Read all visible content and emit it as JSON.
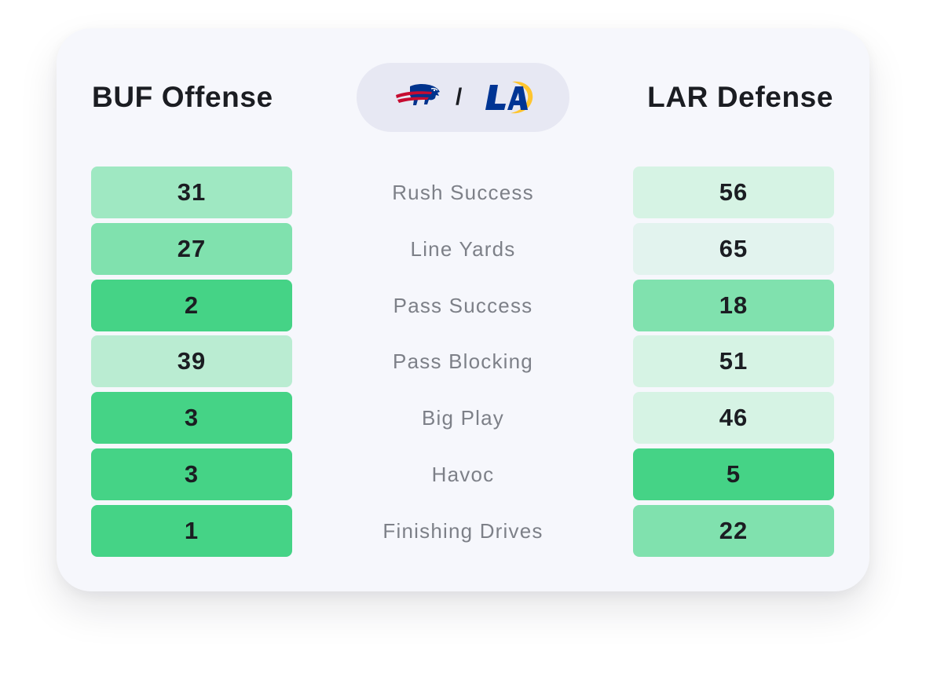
{
  "header": {
    "offense_title": "BUF Offense",
    "defense_title": "LAR Defense",
    "separator": "/",
    "offense_logo": "buffalo-bills-logo",
    "defense_logo": "los-angeles-rams-logo"
  },
  "colors": {
    "rank_top": "#45d386",
    "rank_high": "#80e1ae",
    "rank_mid": "#9fe8c2",
    "rank_low": "#baecd2",
    "rank_lower": "#d6f3e4",
    "rank_lowest": "#e2f3ee"
  },
  "rows": [
    {
      "label": "Rush Success",
      "offense": "31",
      "defense": "56"
    },
    {
      "label": "Line Yards",
      "offense": "27",
      "defense": "65"
    },
    {
      "label": "Pass Success",
      "offense": "2",
      "defense": "18"
    },
    {
      "label": "Pass Blocking",
      "offense": "39",
      "defense": "51"
    },
    {
      "label": "Big Play",
      "offense": "3",
      "defense": "46"
    },
    {
      "label": "Havoc",
      "offense": "3",
      "defense": "5"
    },
    {
      "label": "Finishing Drives",
      "offense": "1",
      "defense": "22"
    }
  ]
}
